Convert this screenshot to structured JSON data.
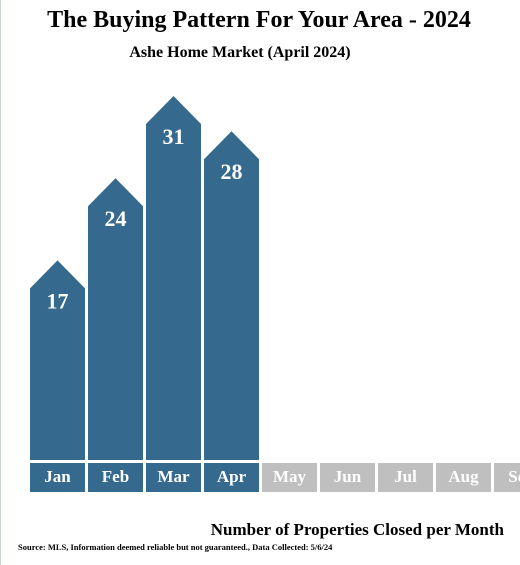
{
  "chart_data": {
    "type": "house-bar",
    "title": "The Buying Pattern For Your Area - 2024",
    "subtitle": "Ashe Home Market (April 2024)",
    "categories": [
      "Jan",
      "Feb",
      "Mar",
      "Apr",
      "May",
      "Jun",
      "Jul",
      "Aug",
      "Sep"
    ],
    "values": [
      17,
      24,
      31,
      28,
      null,
      null,
      null,
      null,
      null
    ],
    "color": "#35698e",
    "empty_color": "#bfbfbf",
    "x_label": "Number of Properties Closed per Month",
    "source": "Source: MLS, Information deemed reliable but not guaranteed., Data Collected: 5/6/24"
  }
}
